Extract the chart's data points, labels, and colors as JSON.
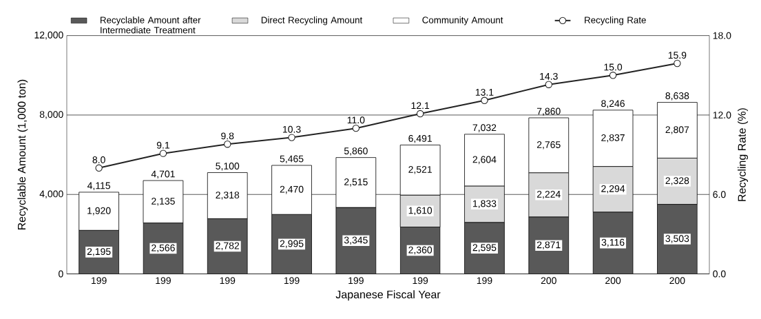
{
  "chart_data": {
    "type": "bar",
    "stacked": true,
    "grid": "y",
    "legend": "top",
    "xlabel": "Japanese Fiscal Year",
    "ylabel": "Recyclable Amount (1,000 ton)",
    "y2label": "Recycling Rate (%)",
    "categories": [
      "199",
      "199",
      "199",
      "199",
      "199",
      "199",
      "199",
      "200",
      "200",
      "200"
    ],
    "ylim": [
      0,
      12000
    ],
    "yticks": [
      0,
      {
        "value": 4000,
        "label": "4,000"
      },
      {
        "value": 8000,
        "label": "8,000"
      },
      {
        "value": 12000,
        "label": "12,000"
      }
    ],
    "y2lim": [
      0,
      18
    ],
    "y2ticks": [
      {
        "value": 0,
        "label": "0.0"
      },
      {
        "value": 6,
        "label": "6.0"
      },
      {
        "value": 12,
        "label": "12.0"
      },
      {
        "value": 18,
        "label": "18.0"
      }
    ],
    "series": [
      {
        "name": "Recyclable Amount after Intermediate Treatment",
        "color": "#595959",
        "values": [
          2195,
          2566,
          2782,
          2995,
          3345,
          2360,
          2595,
          2871,
          3116,
          3503
        ],
        "value_labels": [
          "2,195",
          "2,566",
          "2,782",
          "2,995",
          "3,345",
          "2,360",
          "2,595",
          "2,871",
          "3,116",
          "3,503"
        ]
      },
      {
        "name": "Direct Recycling Amount",
        "color": "#d9d9d9",
        "values": [
          null,
          null,
          null,
          null,
          null,
          1610,
          1833,
          2224,
          2294,
          2328
        ],
        "value_labels": [
          null,
          null,
          null,
          null,
          null,
          "1,610",
          "1,833",
          "2,224",
          "2,294",
          "2,328"
        ]
      },
      {
        "name": "Community Amount",
        "color": "#ffffff",
        "values": [
          1920,
          2135,
          2318,
          2470,
          2515,
          2521,
          2604,
          2765,
          2837,
          2807
        ],
        "value_labels": [
          "1,920",
          "2,135",
          "2,318",
          "2,470",
          "2,515",
          "2,521",
          "2,604",
          "2,765",
          "2,837",
          "2,807"
        ]
      },
      {
        "name": "Recycling Rate",
        "type": "line",
        "axis": "y2",
        "marker": "circle",
        "color": "#222222",
        "values": [
          8.0,
          9.1,
          9.8,
          10.3,
          11.0,
          12.1,
          13.1,
          14.3,
          15.0,
          15.9
        ],
        "value_labels": [
          "8.0",
          "9.1",
          "9.8",
          "10.3",
          "11.0",
          "12.1",
          "13.1",
          "14.3",
          "15.0",
          "15.9"
        ]
      }
    ],
    "totals": [
      "4,115",
      "4,701",
      "5,100",
      "5,465",
      "5,860",
      "6,491",
      "7,032",
      "7,860",
      "8,246",
      "8,638"
    ]
  }
}
